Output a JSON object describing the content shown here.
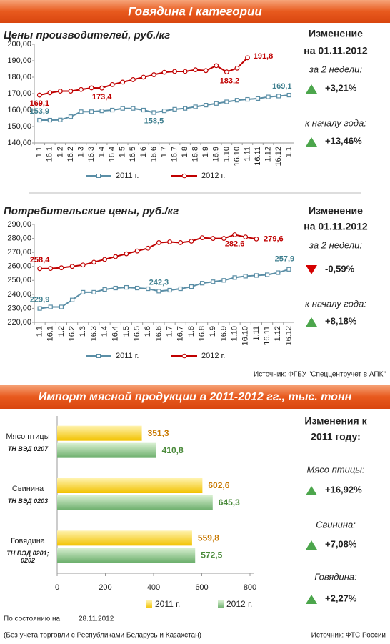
{
  "banners": [
    "Говядина I категории",
    "Импорт мясной продукции в 2011-2012 гг., тыс. тонн"
  ],
  "chart_data": [
    {
      "type": "line",
      "title": "Цены производителей, руб./кг",
      "categories": [
        "1.1",
        "16.1",
        "1.2",
        "16.2",
        "1.3",
        "16.3",
        "1.4",
        "16.4",
        "1.5",
        "16.5",
        "1.6",
        "16.6",
        "1.7",
        "16.7",
        "1.8",
        "16.8",
        "1.9",
        "16.9",
        "1.10",
        "16.10",
        "1.11",
        "16.11",
        "1.12",
        "16.12",
        "1.1"
      ],
      "series": [
        {
          "name": "2011 г.",
          "color": "#5a8ea6",
          "values": [
            153.9,
            153.9,
            154,
            156,
            159,
            159,
            159.5,
            160,
            161,
            161,
            160,
            158.5,
            159.5,
            160.5,
            161,
            162,
            163,
            164,
            165,
            166,
            166.5,
            167,
            168,
            168.5,
            169.1
          ],
          "value_labels": [
            "153,9",
            null,
            null,
            null,
            null,
            null,
            null,
            null,
            null,
            null,
            null,
            "158,5",
            null,
            null,
            null,
            null,
            null,
            null,
            null,
            null,
            null,
            null,
            null,
            null,
            "169,1"
          ]
        },
        {
          "name": "2012 г.",
          "color": "#c00000",
          "values": [
            169.1,
            170.5,
            171.5,
            171.5,
            172.5,
            173.5,
            173.4,
            175.5,
            177,
            178.5,
            180,
            181.5,
            183,
            183.5,
            183.5,
            184.5,
            184,
            187,
            183.2,
            185.5,
            191.8,
            null,
            null,
            null,
            null
          ],
          "value_labels": [
            "169,1",
            null,
            null,
            null,
            null,
            null,
            "173,4",
            null,
            null,
            null,
            null,
            null,
            null,
            null,
            null,
            null,
            null,
            null,
            "183,2",
            null,
            "191,8",
            null,
            null,
            null,
            null
          ]
        }
      ],
      "ylim": [
        140,
        200
      ],
      "yticks": [
        {
          "value": 140,
          "label": "140,00"
        },
        {
          "value": 150,
          "label": "150,00"
        },
        {
          "value": 160,
          "label": "160,00"
        },
        {
          "value": 170,
          "label": "170,00"
        },
        {
          "value": 180,
          "label": "180,00"
        },
        {
          "value": 190,
          "label": "190,00"
        },
        {
          "value": 200,
          "label": "200,00"
        }
      ],
      "grid": false
    },
    {
      "type": "line",
      "title": "Потребительские цены, руб./кг",
      "categories": [
        "1.1",
        "16.1",
        "1.2",
        "16.2",
        "1.3",
        "16.3",
        "1.4",
        "16.4",
        "1.5",
        "16.5",
        "1.6",
        "16.6",
        "1.7",
        "16.7",
        "1.8",
        "16.8",
        "1.9",
        "16.9",
        "1.10",
        "16.10",
        "1.11",
        "16.11",
        "1.12",
        "16.12"
      ],
      "series": [
        {
          "name": "2011 г.",
          "color": "#5a8ea6",
          "values": [
            229.9,
            231,
            231,
            236,
            241.5,
            241.5,
            243.5,
            244.5,
            245,
            244.5,
            244,
            242.3,
            243,
            244,
            245.5,
            248,
            249,
            250,
            252,
            253,
            253.5,
            254,
            255.5,
            257.9
          ],
          "value_labels": [
            "229,9",
            null,
            null,
            null,
            null,
            null,
            null,
            null,
            null,
            null,
            null,
            "242,3",
            null,
            null,
            null,
            null,
            null,
            null,
            null,
            null,
            null,
            null,
            null,
            "257,9"
          ]
        },
        {
          "name": "2012 г.",
          "color": "#c00000",
          "values": [
            258.4,
            258.5,
            259,
            260,
            261,
            263,
            265,
            267,
            269,
            271,
            273,
            277,
            277.5,
            277,
            278,
            280.5,
            280,
            280,
            282.6,
            281,
            279.6,
            null,
            null,
            null
          ],
          "value_labels": [
            "258,4",
            null,
            null,
            null,
            null,
            null,
            null,
            null,
            null,
            null,
            null,
            null,
            null,
            null,
            null,
            null,
            null,
            null,
            "282,6",
            null,
            "279,6",
            null,
            null,
            null
          ]
        }
      ],
      "ylim": [
        220,
        290
      ],
      "yticks": [
        {
          "value": 220,
          "label": "220,00"
        },
        {
          "value": 230,
          "label": "230,00"
        },
        {
          "value": 240,
          "label": "240,00"
        },
        {
          "value": 250,
          "label": "250,00"
        },
        {
          "value": 260,
          "label": "260,00"
        },
        {
          "value": 270,
          "label": "270,00"
        },
        {
          "value": 280,
          "label": "280,00"
        },
        {
          "value": 290,
          "label": "290,00"
        }
      ],
      "grid": false
    },
    {
      "type": "hbar",
      "categories": [
        "Мясо птицы",
        "Свинина",
        "Говядина"
      ],
      "category_codes": [
        "ТН ВЭД 0207",
        "ТН ВЭД 0203",
        "ТН ВЭД 0201; 0202"
      ],
      "series": [
        {
          "name": "2011 г.",
          "color": "#f2c200",
          "label_color": "#c87800",
          "values": [
            351.3,
            602.6,
            559.8
          ],
          "value_labels": [
            "351,3",
            "602,6",
            "559,8"
          ]
        },
        {
          "name": "2012 г.",
          "color": "#6bae6b",
          "label_color": "#4a8a3a",
          "values": [
            410.8,
            645.3,
            572.5
          ],
          "value_labels": [
            "410,8",
            "645,3",
            "572,5"
          ]
        }
      ],
      "xlim": [
        0,
        800
      ],
      "xticks": [
        0,
        200,
        400,
        600,
        800
      ],
      "grid": false
    }
  ],
  "panels": [
    {
      "heading": [
        "Изменение",
        "на 01.11.2012"
      ],
      "items": [
        {
          "label": "за 2 недели:",
          "value": "+3,21%"
        },
        {
          "label": "к началу года:",
          "value": "+13,46%"
        }
      ]
    },
    {
      "heading": [
        "Изменение",
        "на 01.11.2012"
      ],
      "items": [
        {
          "label": "за 2 недели:",
          "value": "-0,59%"
        },
        {
          "label": "к началу года:",
          "value": "+8,18%"
        }
      ]
    },
    {
      "heading": [
        "Изменения к",
        "2011 году:"
      ],
      "items": [
        {
          "label": "Мясо птицы:",
          "value": "+16,92%"
        },
        {
          "label": "Свинина:",
          "value": "+7,08%"
        },
        {
          "label": "Говядина:",
          "value": "+2,27%"
        }
      ]
    }
  ],
  "source_1": "Источник: ФГБУ \"Спеццентручет в АПК\"",
  "as_of_label": "По состоянию на",
  "as_of_date": "28.11.2012",
  "footnote": "(Без учета торговли с Республиками Беларусь и Казахстан)",
  "source_2": "Источник: ФТС России"
}
